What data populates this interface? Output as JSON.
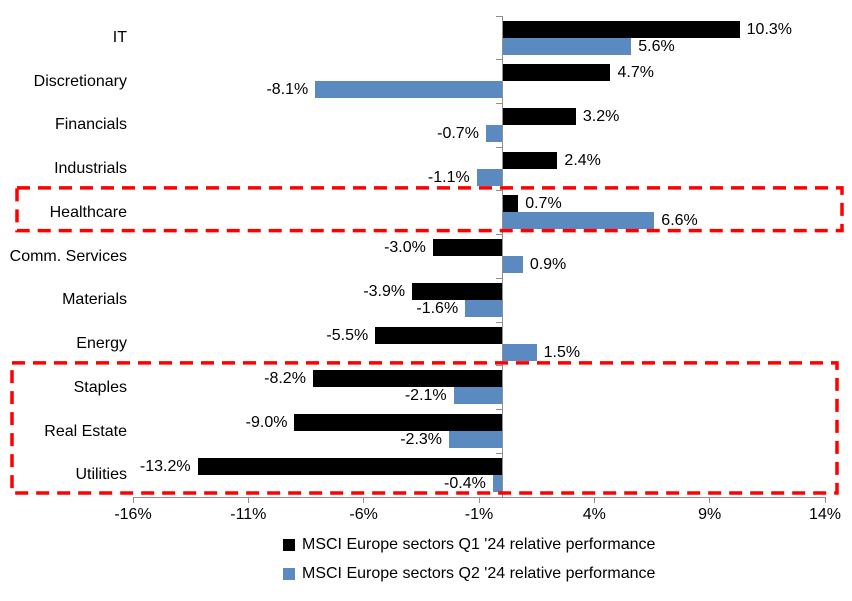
{
  "chart_data": {
    "type": "bar",
    "orientation": "horizontal",
    "title": "",
    "categories": [
      "IT",
      "Discretionary",
      "Financials",
      "Industrials",
      "Healthcare",
      "Comm. Services",
      "Materials",
      "Energy",
      "Staples",
      "Real Estate",
      "Utilities"
    ],
    "series": [
      {
        "name": "MSCI Europe sectors Q1 '24 relative performance",
        "color": "#000000",
        "values": [
          10.3,
          4.7,
          3.2,
          2.4,
          0.7,
          -3.0,
          -3.9,
          -5.5,
          -8.2,
          -9.0,
          -13.2
        ],
        "labels": [
          "10.3%",
          "4.7%",
          "3.2%",
          "2.4%",
          "0.7%",
          "-3.0%",
          "-3.9%",
          "-5.5%",
          "-8.2%",
          "-9.0%",
          "-13.2%"
        ]
      },
      {
        "name": "MSCI Europe sectors Q2 '24 relative performance",
        "color": "#5B8AC0",
        "values": [
          5.6,
          -8.1,
          -0.7,
          -1.1,
          6.6,
          0.9,
          -1.6,
          1.5,
          -2.1,
          -2.3,
          -0.4
        ],
        "labels": [
          "5.6%",
          "-8.1%",
          "-0.7%",
          "-1.1%",
          "6.6%",
          "0.9%",
          "-1.6%",
          "1.5%",
          "-2.1%",
          "-2.3%",
          "-0.4%"
        ]
      }
    ],
    "x_ticks": [
      -16,
      -11,
      -6,
      -1,
      4,
      9,
      14
    ],
    "x_tick_labels": [
      "-16%",
      "-11%",
      "-6%",
      "-1%",
      "4%",
      "9%",
      "14%"
    ],
    "xlim": [
      -16,
      14
    ],
    "grid": false,
    "legend_position": "bottom",
    "highlight_color": "#FF0000",
    "highlights": [
      {
        "id": "healthcare-highlight",
        "from": "Healthcare",
        "to": "Healthcare"
      },
      {
        "id": "defensives-highlight",
        "from": "Staples",
        "to": "Utilities"
      }
    ]
  }
}
